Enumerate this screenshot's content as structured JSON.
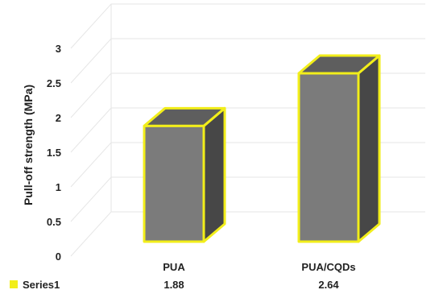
{
  "chart_data": {
    "type": "bar",
    "ylabel": "Pull-off strength (MPa)",
    "xlabel": "",
    "ylim": [
      0,
      3
    ],
    "yticks": [
      "0",
      "0.5",
      "1",
      "1.5",
      "2",
      "2.5",
      "3"
    ],
    "categories": [
      "PUA",
      "PUA/CQDs"
    ],
    "series": [
      {
        "name": "Series1",
        "values": [
          1.88,
          2.64
        ],
        "value_labels": [
          "1.88",
          "2.64"
        ]
      }
    ],
    "grid": true,
    "style": "3d-column",
    "data_table": true,
    "colors": {
      "bar_front": "#7b7b7b",
      "bar_side": "#474747",
      "bar_top": "#5e5e5e",
      "outline": "#f2ee1a",
      "grid": "#e6e6e6",
      "legend_key": "#f2ee1a"
    }
  }
}
